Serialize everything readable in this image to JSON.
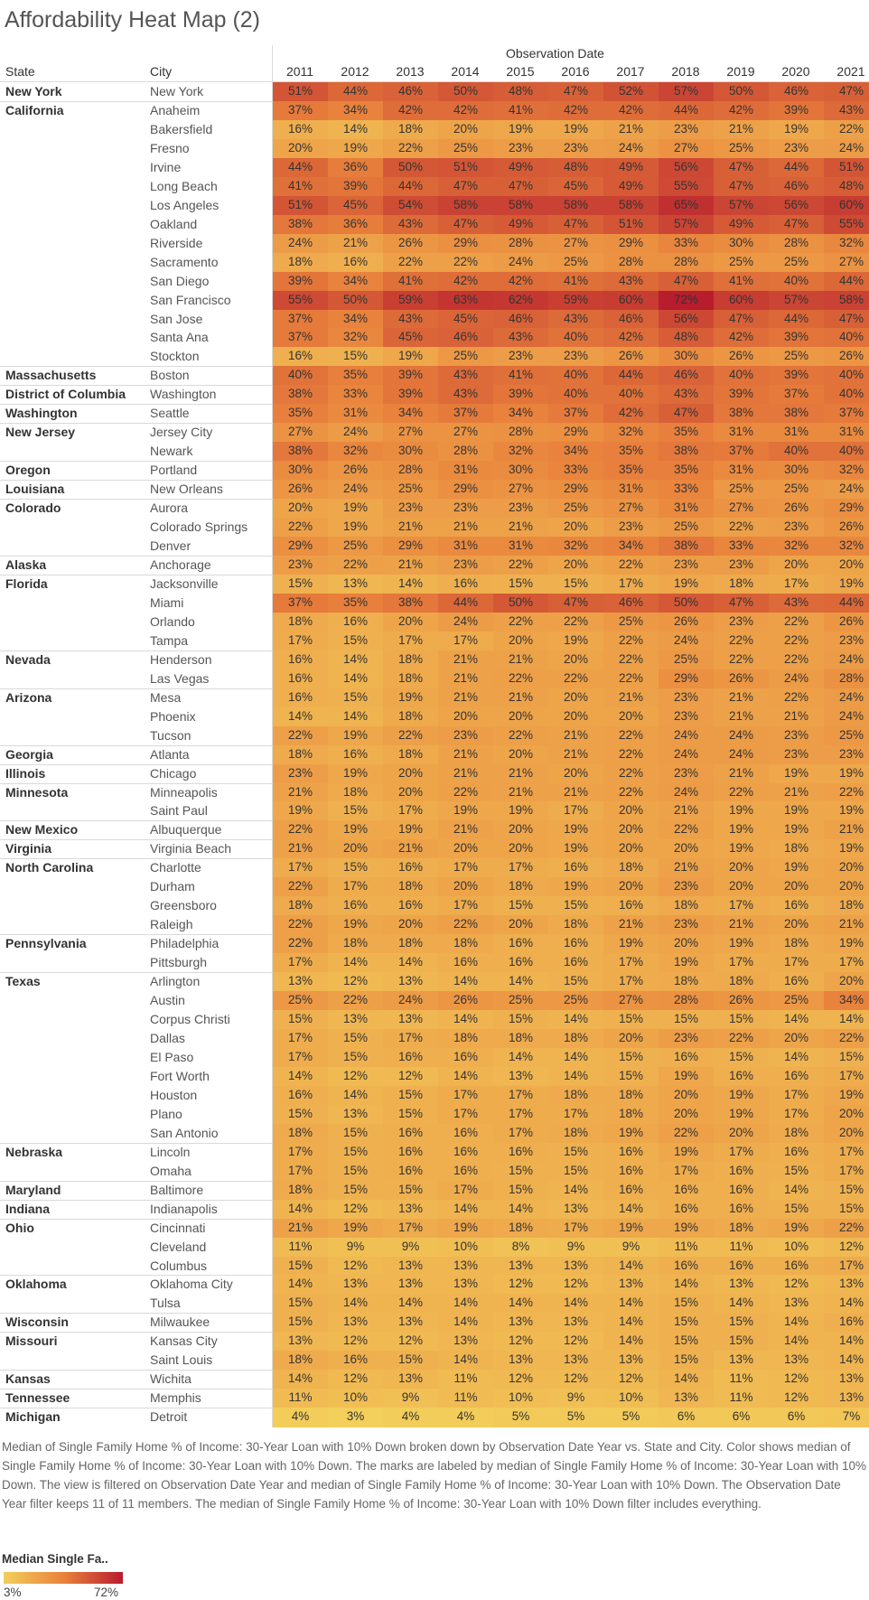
{
  "title": "Affordability Heat Map (2)",
  "column_headers": {
    "state": "State",
    "city": "City",
    "observation_date": "Observation Date"
  },
  "caption": "Median of Single Family Home % of Income: 30-Year Loan with 10% Down broken down by Observation Date Year vs. State and City. Color shows median of Single Family Home % of Income: 30-Year Loan with 10% Down.  The marks are labeled by median of Single Family Home % of Income: 30-Year Loan with 10% Down. The view is filtered on Observation Date Year and median of Single Family Home % of Income: 30-Year Loan with 10% Down. The Observation Date Year filter keeps 11 of 11 members. The median of Single Family Home % of Income: 30-Year Loan with 10% Down filter includes everything.",
  "legend": {
    "title": "Median Single Fa..",
    "min_label": "3%",
    "max_label": "72%"
  },
  "colors": {
    "low": "#f3cf5b",
    "mid": "#e9823c",
    "high": "#b81d2e"
  },
  "chart_data": {
    "type": "heatmap",
    "years": [
      "2011",
      "2012",
      "2013",
      "2014",
      "2015",
      "2016",
      "2017",
      "2018",
      "2019",
      "2020",
      "2021"
    ],
    "value_range": [
      3,
      72
    ],
    "rows": [
      {
        "state": "New York",
        "city": "New York",
        "values": [
          51,
          44,
          46,
          50,
          48,
          47,
          52,
          57,
          50,
          46,
          47
        ]
      },
      {
        "state": "California",
        "city": "Anaheim",
        "values": [
          37,
          34,
          42,
          42,
          41,
          42,
          42,
          44,
          42,
          39,
          43
        ]
      },
      {
        "state": "",
        "city": "Bakersfield",
        "values": [
          16,
          14,
          18,
          20,
          19,
          19,
          21,
          23,
          21,
          19,
          22
        ]
      },
      {
        "state": "",
        "city": "Fresno",
        "values": [
          20,
          19,
          22,
          25,
          23,
          23,
          24,
          27,
          25,
          23,
          24
        ]
      },
      {
        "state": "",
        "city": "Irvine",
        "values": [
          44,
          36,
          50,
          51,
          49,
          48,
          49,
          56,
          47,
          44,
          51
        ]
      },
      {
        "state": "",
        "city": "Long Beach",
        "values": [
          41,
          39,
          44,
          47,
          47,
          45,
          49,
          55,
          47,
          46,
          48
        ]
      },
      {
        "state": "",
        "city": "Los Angeles",
        "values": [
          51,
          45,
          54,
          58,
          58,
          58,
          58,
          65,
          57,
          56,
          60
        ]
      },
      {
        "state": "",
        "city": "Oakland",
        "values": [
          38,
          36,
          43,
          47,
          49,
          47,
          51,
          57,
          49,
          47,
          55
        ]
      },
      {
        "state": "",
        "city": "Riverside",
        "values": [
          24,
          21,
          26,
          29,
          28,
          27,
          29,
          33,
          30,
          28,
          32
        ]
      },
      {
        "state": "",
        "city": "Sacramento",
        "values": [
          18,
          16,
          22,
          22,
          24,
          25,
          28,
          28,
          25,
          25,
          27
        ]
      },
      {
        "state": "",
        "city": "San Diego",
        "values": [
          39,
          34,
          41,
          42,
          42,
          41,
          43,
          47,
          41,
          40,
          44
        ]
      },
      {
        "state": "",
        "city": "San Francisco",
        "values": [
          55,
          50,
          59,
          63,
          62,
          59,
          60,
          72,
          60,
          57,
          58
        ]
      },
      {
        "state": "",
        "city": "San Jose",
        "values": [
          37,
          34,
          43,
          45,
          46,
          43,
          46,
          56,
          47,
          44,
          47
        ]
      },
      {
        "state": "",
        "city": "Santa Ana",
        "values": [
          37,
          32,
          45,
          46,
          43,
          40,
          42,
          48,
          42,
          39,
          40
        ]
      },
      {
        "state": "",
        "city": "Stockton",
        "values": [
          16,
          15,
          19,
          25,
          23,
          23,
          26,
          30,
          26,
          25,
          26
        ]
      },
      {
        "state": "Massachusetts",
        "city": "Boston",
        "values": [
          40,
          35,
          39,
          43,
          41,
          40,
          44,
          46,
          40,
          39,
          40
        ]
      },
      {
        "state": "District of Columbia",
        "city": "Washington",
        "values": [
          38,
          33,
          39,
          43,
          39,
          40,
          40,
          43,
          39,
          37,
          40
        ]
      },
      {
        "state": "Washington",
        "city": "Seattle",
        "values": [
          35,
          31,
          34,
          37,
          34,
          37,
          42,
          47,
          38,
          38,
          37
        ]
      },
      {
        "state": "New Jersey",
        "city": "Jersey City",
        "values": [
          27,
          24,
          27,
          27,
          28,
          29,
          32,
          35,
          31,
          31,
          31
        ]
      },
      {
        "state": "",
        "city": "Newark",
        "values": [
          38,
          32,
          30,
          28,
          32,
          34,
          35,
          38,
          37,
          40,
          40
        ]
      },
      {
        "state": "Oregon",
        "city": "Portland",
        "values": [
          30,
          26,
          28,
          31,
          30,
          33,
          35,
          35,
          31,
          30,
          32
        ]
      },
      {
        "state": "Louisiana",
        "city": "New Orleans",
        "values": [
          26,
          24,
          25,
          29,
          27,
          29,
          31,
          33,
          25,
          25,
          24
        ]
      },
      {
        "state": "Colorado",
        "city": "Aurora",
        "values": [
          20,
          19,
          23,
          23,
          23,
          25,
          27,
          31,
          27,
          26,
          29
        ]
      },
      {
        "state": "",
        "city": "Colorado Springs",
        "values": [
          22,
          19,
          21,
          21,
          21,
          20,
          23,
          25,
          22,
          23,
          26
        ]
      },
      {
        "state": "",
        "city": "Denver",
        "values": [
          29,
          25,
          29,
          31,
          31,
          32,
          34,
          38,
          33,
          32,
          32
        ]
      },
      {
        "state": "Alaska",
        "city": "Anchorage",
        "values": [
          23,
          22,
          21,
          23,
          22,
          20,
          22,
          23,
          23,
          20,
          20
        ]
      },
      {
        "state": "Florida",
        "city": "Jacksonville",
        "values": [
          15,
          13,
          14,
          16,
          15,
          15,
          17,
          19,
          18,
          17,
          19
        ]
      },
      {
        "state": "",
        "city": "Miami",
        "values": [
          37,
          35,
          38,
          44,
          50,
          47,
          46,
          50,
          47,
          43,
          44
        ]
      },
      {
        "state": "",
        "city": "Orlando",
        "values": [
          18,
          16,
          20,
          24,
          22,
          22,
          25,
          26,
          23,
          22,
          26
        ]
      },
      {
        "state": "",
        "city": "Tampa",
        "values": [
          17,
          15,
          17,
          17,
          20,
          19,
          22,
          24,
          22,
          22,
          23
        ]
      },
      {
        "state": "Nevada",
        "city": "Henderson",
        "values": [
          16,
          14,
          18,
          21,
          21,
          20,
          22,
          25,
          22,
          22,
          24
        ]
      },
      {
        "state": "",
        "city": "Las Vegas",
        "values": [
          16,
          14,
          18,
          21,
          22,
          22,
          22,
          29,
          26,
          24,
          28
        ]
      },
      {
        "state": "Arizona",
        "city": "Mesa",
        "values": [
          16,
          15,
          19,
          21,
          21,
          20,
          21,
          23,
          21,
          22,
          24
        ]
      },
      {
        "state": "",
        "city": "Phoenix",
        "values": [
          14,
          14,
          18,
          20,
          20,
          20,
          20,
          23,
          21,
          21,
          24
        ]
      },
      {
        "state": "",
        "city": "Tucson",
        "values": [
          22,
          19,
          22,
          23,
          22,
          21,
          22,
          24,
          24,
          23,
          25
        ]
      },
      {
        "state": "Georgia",
        "city": "Atlanta",
        "values": [
          18,
          16,
          18,
          21,
          20,
          21,
          22,
          24,
          24,
          23,
          23
        ]
      },
      {
        "state": "Illinois",
        "city": "Chicago",
        "values": [
          23,
          19,
          20,
          21,
          21,
          20,
          22,
          23,
          21,
          19,
          19
        ]
      },
      {
        "state": "Minnesota",
        "city": "Minneapolis",
        "values": [
          21,
          18,
          20,
          22,
          21,
          21,
          22,
          24,
          22,
          21,
          22
        ]
      },
      {
        "state": "",
        "city": "Saint Paul",
        "values": [
          19,
          15,
          17,
          19,
          19,
          17,
          20,
          21,
          19,
          19,
          19
        ]
      },
      {
        "state": "New Mexico",
        "city": "Albuquerque",
        "values": [
          22,
          19,
          19,
          21,
          20,
          19,
          20,
          22,
          19,
          19,
          21
        ]
      },
      {
        "state": "Virginia",
        "city": "Virginia Beach",
        "values": [
          21,
          20,
          21,
          20,
          20,
          19,
          20,
          20,
          19,
          18,
          19
        ]
      },
      {
        "state": "North Carolina",
        "city": "Charlotte",
        "values": [
          17,
          15,
          16,
          17,
          17,
          16,
          18,
          21,
          20,
          19,
          20
        ]
      },
      {
        "state": "",
        "city": "Durham",
        "values": [
          22,
          17,
          18,
          20,
          18,
          19,
          20,
          23,
          20,
          20,
          20
        ]
      },
      {
        "state": "",
        "city": "Greensboro",
        "values": [
          18,
          16,
          16,
          17,
          15,
          15,
          16,
          18,
          17,
          16,
          18
        ]
      },
      {
        "state": "",
        "city": "Raleigh",
        "values": [
          22,
          19,
          20,
          22,
          20,
          18,
          21,
          23,
          21,
          20,
          21
        ]
      },
      {
        "state": "Pennsylvania",
        "city": "Philadelphia",
        "values": [
          22,
          18,
          18,
          18,
          16,
          16,
          19,
          20,
          19,
          18,
          19
        ]
      },
      {
        "state": "",
        "city": "Pittsburgh",
        "values": [
          17,
          14,
          14,
          16,
          16,
          16,
          17,
          19,
          17,
          17,
          17
        ]
      },
      {
        "state": "Texas",
        "city": "Arlington",
        "values": [
          13,
          12,
          13,
          14,
          14,
          15,
          17,
          18,
          18,
          16,
          20
        ]
      },
      {
        "state": "",
        "city": "Austin",
        "values": [
          25,
          22,
          24,
          26,
          25,
          25,
          27,
          28,
          26,
          25,
          34
        ]
      },
      {
        "state": "",
        "city": "Corpus Christi",
        "values": [
          15,
          13,
          13,
          14,
          15,
          14,
          15,
          15,
          15,
          14,
          14
        ]
      },
      {
        "state": "",
        "city": "Dallas",
        "values": [
          17,
          15,
          17,
          18,
          18,
          18,
          20,
          23,
          22,
          20,
          22
        ]
      },
      {
        "state": "",
        "city": "El Paso",
        "values": [
          17,
          15,
          16,
          16,
          14,
          14,
          15,
          16,
          15,
          14,
          15
        ]
      },
      {
        "state": "",
        "city": "Fort Worth",
        "values": [
          14,
          12,
          12,
          14,
          13,
          14,
          15,
          19,
          16,
          16,
          17
        ]
      },
      {
        "state": "",
        "city": "Houston",
        "values": [
          16,
          14,
          15,
          17,
          17,
          18,
          18,
          20,
          19,
          17,
          19
        ]
      },
      {
        "state": "",
        "city": "Plano",
        "values": [
          15,
          13,
          15,
          17,
          17,
          17,
          18,
          20,
          19,
          17,
          20
        ]
      },
      {
        "state": "",
        "city": "San Antonio",
        "values": [
          18,
          15,
          16,
          16,
          17,
          18,
          19,
          22,
          20,
          18,
          20
        ]
      },
      {
        "state": "Nebraska",
        "city": "Lincoln",
        "values": [
          17,
          15,
          16,
          16,
          16,
          15,
          16,
          19,
          17,
          16,
          17
        ]
      },
      {
        "state": "",
        "city": "Omaha",
        "values": [
          17,
          15,
          16,
          16,
          15,
          15,
          16,
          17,
          16,
          15,
          17
        ]
      },
      {
        "state": "Maryland",
        "city": "Baltimore",
        "values": [
          18,
          15,
          15,
          17,
          15,
          14,
          16,
          16,
          16,
          14,
          15
        ]
      },
      {
        "state": "Indiana",
        "city": "Indianapolis",
        "values": [
          14,
          12,
          13,
          14,
          14,
          13,
          14,
          16,
          16,
          15,
          15
        ]
      },
      {
        "state": "Ohio",
        "city": "Cincinnati",
        "values": [
          21,
          19,
          17,
          19,
          18,
          17,
          19,
          19,
          18,
          19,
          22
        ]
      },
      {
        "state": "",
        "city": "Cleveland",
        "values": [
          11,
          9,
          9,
          10,
          8,
          9,
          9,
          11,
          11,
          10,
          12
        ]
      },
      {
        "state": "",
        "city": "Columbus",
        "values": [
          15,
          12,
          13,
          13,
          13,
          13,
          14,
          16,
          16,
          16,
          17
        ]
      },
      {
        "state": "Oklahoma",
        "city": "Oklahoma City",
        "values": [
          14,
          13,
          13,
          13,
          12,
          12,
          13,
          14,
          13,
          12,
          13
        ]
      },
      {
        "state": "",
        "city": "Tulsa",
        "values": [
          15,
          14,
          14,
          14,
          14,
          14,
          14,
          15,
          14,
          13,
          14
        ]
      },
      {
        "state": "Wisconsin",
        "city": "Milwaukee",
        "values": [
          15,
          13,
          13,
          14,
          13,
          13,
          14,
          15,
          15,
          14,
          16
        ]
      },
      {
        "state": "Missouri",
        "city": "Kansas City",
        "values": [
          13,
          12,
          12,
          13,
          12,
          12,
          14,
          15,
          15,
          14,
          14
        ]
      },
      {
        "state": "",
        "city": "Saint Louis",
        "values": [
          18,
          16,
          15,
          14,
          13,
          13,
          13,
          15,
          13,
          13,
          14
        ]
      },
      {
        "state": "Kansas",
        "city": "Wichita",
        "values": [
          14,
          12,
          13,
          11,
          12,
          12,
          12,
          14,
          11,
          12,
          13
        ]
      },
      {
        "state": "Tennessee",
        "city": "Memphis",
        "values": [
          11,
          10,
          9,
          11,
          10,
          9,
          10,
          13,
          11,
          12,
          13
        ]
      },
      {
        "state": "Michigan",
        "city": "Detroit",
        "values": [
          4,
          3,
          4,
          4,
          5,
          5,
          5,
          6,
          6,
          6,
          7
        ]
      }
    ]
  }
}
